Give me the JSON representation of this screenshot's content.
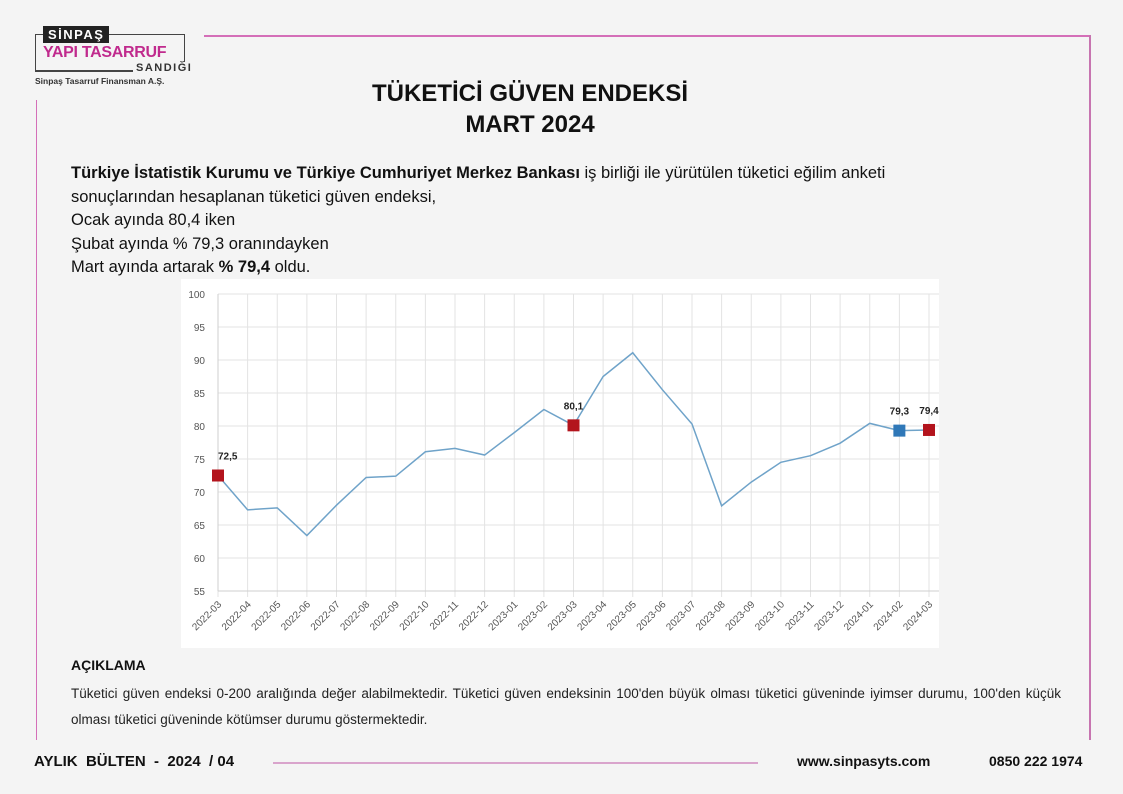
{
  "logo": {
    "top": "SİNPAŞ",
    "main": "YAPI TASARRUF",
    "bottom": "SANDIĞI",
    "subtitle": "Sinpaş Tasarruf Finansman A.Ş."
  },
  "title": {
    "line1": "TÜKETİCİ GÜVEN ENDEKSİ",
    "line2": "MART 2024"
  },
  "intro": {
    "bold_part": "Türkiye İstatistik Kurumu ve Türkiye Cumhuriyet Merkez Bankası",
    "line1_rest": " iş birliği ile yürütülen tüketici eğilim anketi",
    "line2": "sonuçlarından hesaplanan tüketici güven endeksi,",
    "line3": "Ocak ayında 80,4 iken",
    "line4": "Şubat ayında % 79,3 oranındayken",
    "line5_pre": "Mart ayında artarak ",
    "line5_bold": "% 79,4",
    "line5_post": " oldu."
  },
  "chart_data": {
    "type": "line",
    "title": "",
    "xlabel": "",
    "ylabel": "",
    "ylim": [
      55,
      100
    ],
    "yticks": [
      55,
      60,
      65,
      70,
      75,
      80,
      85,
      90,
      95,
      100
    ],
    "grid": true,
    "line_color": "#6fa3c9",
    "categories": [
      "2022-03",
      "2022-04",
      "2022-05",
      "2022-06",
      "2022-07",
      "2022-08",
      "2022-09",
      "2022-10",
      "2022-11",
      "2022-12",
      "2023-01",
      "2023-02",
      "2023-03",
      "2023-04",
      "2023-05",
      "2023-06",
      "2023-07",
      "2023-08",
      "2023-09",
      "2023-10",
      "2023-11",
      "2023-12",
      "2024-01",
      "2024-02",
      "2024-03"
    ],
    "values": [
      72.5,
      67.3,
      67.6,
      63.4,
      68.0,
      72.2,
      72.4,
      76.1,
      76.6,
      75.6,
      79.0,
      82.5,
      80.1,
      87.5,
      91.1,
      85.5,
      80.3,
      67.9,
      71.5,
      74.5,
      75.5,
      77.4,
      80.4,
      79.3,
      79.4
    ],
    "markers": [
      {
        "index": 0,
        "label": "72,5",
        "color": "#b3141d"
      },
      {
        "index": 12,
        "label": "80,1",
        "color": "#b3141d"
      },
      {
        "index": 23,
        "label": "79,3",
        "color": "#2f78b8"
      },
      {
        "index": 24,
        "label": "79,4",
        "color": "#b3141d"
      }
    ]
  },
  "explanation": {
    "heading": "AÇIKLAMA",
    "text": "Tüketici güven endeksi 0-200 aralığında değer alabilmektedir. Tüketici güven endeksinin 100'den büyük olması tüketici güveninde iyimser durumu, 100'den küçük olması tüketici güveninde kötümser durumu göstermektedir."
  },
  "footer": {
    "bulletin": "AYLIK  BÜLTEN  -  2024  / 04",
    "website": "www.sinpasyts.com",
    "phone": "0850 222 1974"
  }
}
